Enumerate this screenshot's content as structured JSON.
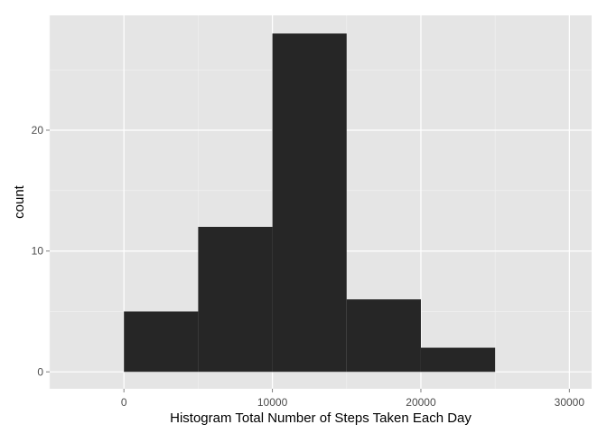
{
  "chart_data": {
    "type": "bar",
    "histogram": true,
    "xlabel": "Histogram Total Number of Steps Taken Each Day",
    "ylabel": "count",
    "bins": [
      {
        "x_start": 0,
        "x_end": 5000,
        "count": 5
      },
      {
        "x_start": 5000,
        "x_end": 10000,
        "count": 12
      },
      {
        "x_start": 10000,
        "x_end": 15000,
        "count": 28
      },
      {
        "x_start": 15000,
        "x_end": 20000,
        "count": 6
      },
      {
        "x_start": 20000,
        "x_end": 25000,
        "count": 2
      }
    ],
    "xlim": [
      -5000,
      31500
    ],
    "ylim": [
      -1.4,
      29.5
    ],
    "x_ticks": [
      0,
      10000,
      20000,
      30000
    ],
    "x_tick_labels": [
      "0",
      "10000",
      "20000",
      "30000"
    ],
    "y_ticks": [
      0,
      10,
      20
    ],
    "y_tick_labels": [
      "0",
      "10",
      "20"
    ],
    "grid": true,
    "legend": "none",
    "colors": {
      "bar": "#262626",
      "panel": "#e5e5e5",
      "grid": "#ffffff"
    }
  }
}
